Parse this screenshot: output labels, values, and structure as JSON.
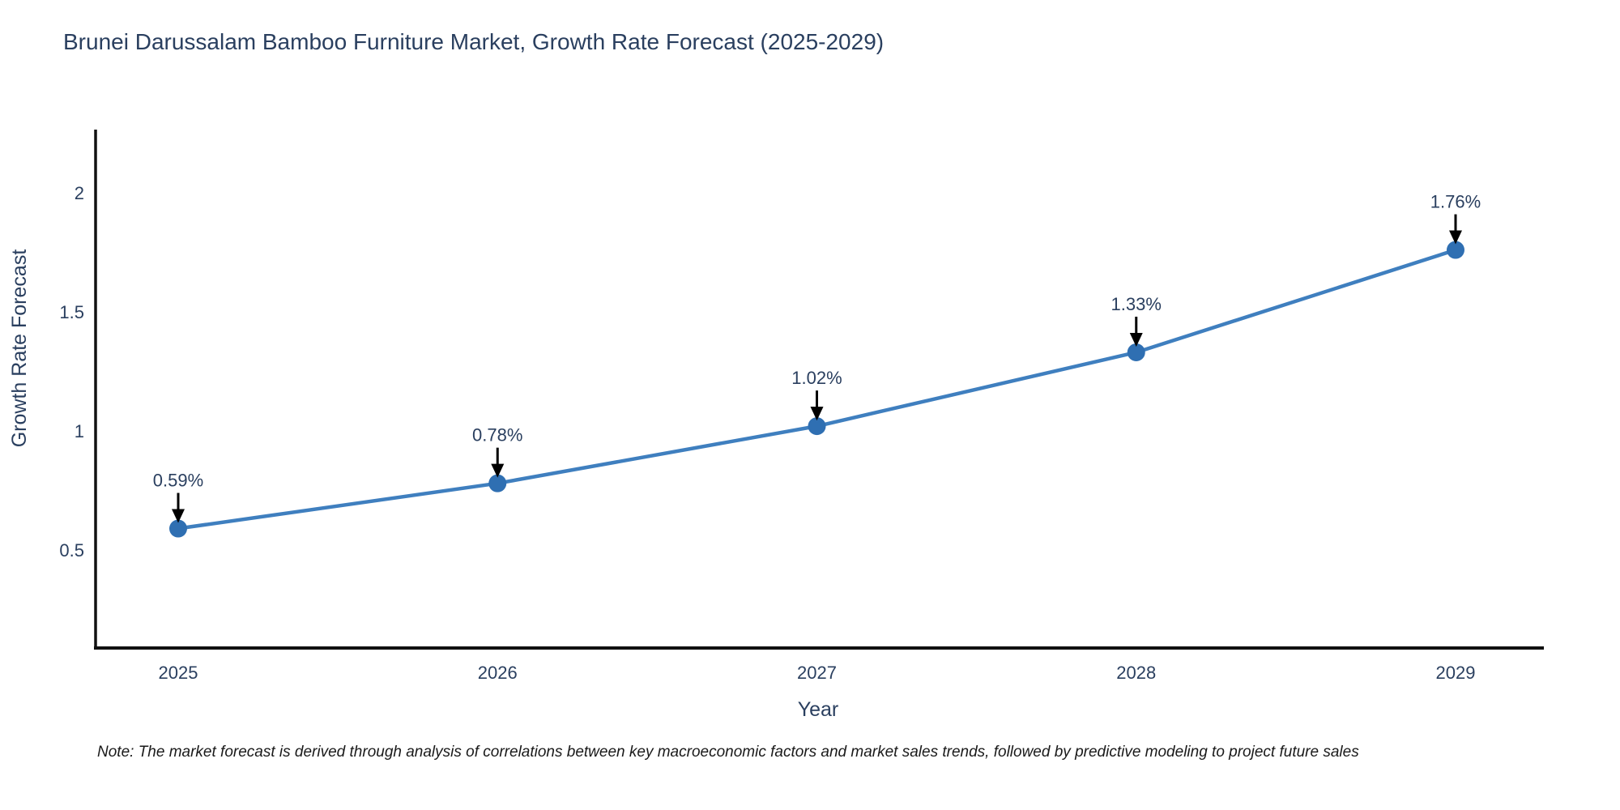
{
  "title": "Brunei Darussalam Bamboo Furniture Market, Growth Rate Forecast (2025-2029)",
  "note": "Note: The market forecast is derived through analysis of correlations between key macroeconomic factors and market sales trends, followed by predictive modeling to project future sales",
  "chart_data": {
    "type": "line",
    "title": "Brunei Darussalam Bamboo Furniture Market, Growth Rate Forecast (2025-2029)",
    "xlabel": "Year",
    "ylabel": "Growth Rate Forecast",
    "categories": [
      "2025",
      "2026",
      "2027",
      "2028",
      "2029"
    ],
    "x": [
      2025,
      2026,
      2027,
      2028,
      2029
    ],
    "series": [
      {
        "name": "Growth Rate Forecast",
        "values": [
          0.59,
          0.78,
          1.02,
          1.33,
          1.76
        ]
      }
    ],
    "point_labels": [
      "0.59%",
      "0.78%",
      "1.02%",
      "1.33%",
      "1.76%"
    ],
    "y_ticks": [
      0.5,
      1,
      1.5,
      2
    ],
    "y_tick_labels": [
      "0.5",
      "1",
      "1.5",
      "2"
    ],
    "ylim": [
      0.09,
      2.27
    ],
    "grid": false,
    "legend": "none",
    "annotations_arrows": true,
    "colors": {
      "line": "#3f7fbf",
      "marker": "#2f6fb2",
      "axis": "#111111",
      "text": "#2a3f5f",
      "arrow": "#000000"
    }
  }
}
